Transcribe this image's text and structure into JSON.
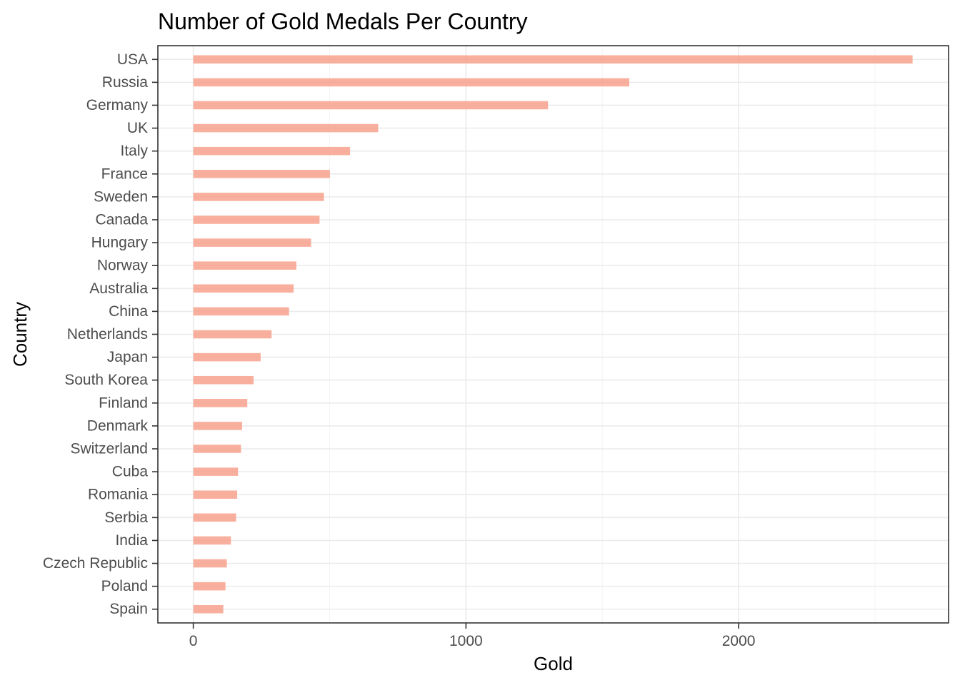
{
  "chart_data": {
    "type": "bar",
    "orientation": "horizontal",
    "title": "Number of Gold Medals Per Country",
    "xlabel": "Gold",
    "ylabel": "Country",
    "categories": [
      "USA",
      "Russia",
      "Germany",
      "UK",
      "Italy",
      "France",
      "Sweden",
      "Canada",
      "Hungary",
      "Norway",
      "Australia",
      "China",
      "Netherlands",
      "Japan",
      "South Korea",
      "Finland",
      "Denmark",
      "Switzerland",
      "Cuba",
      "Romania",
      "Serbia",
      "India",
      "Czech Republic",
      "Poland",
      "Spain"
    ],
    "values": [
      2638,
      1599,
      1301,
      678,
      575,
      501,
      479,
      463,
      432,
      378,
      368,
      351,
      287,
      247,
      221,
      198,
      179,
      175,
      164,
      161,
      157,
      138,
      123,
      118,
      110
    ],
    "xlim": [
      -130,
      2770
    ],
    "xticks": [
      0,
      1000,
      2000
    ],
    "xtick_labels": [
      "0",
      "1000",
      "2000"
    ],
    "bar_color": "#f8a18c",
    "grid": true,
    "legend": "none"
  }
}
